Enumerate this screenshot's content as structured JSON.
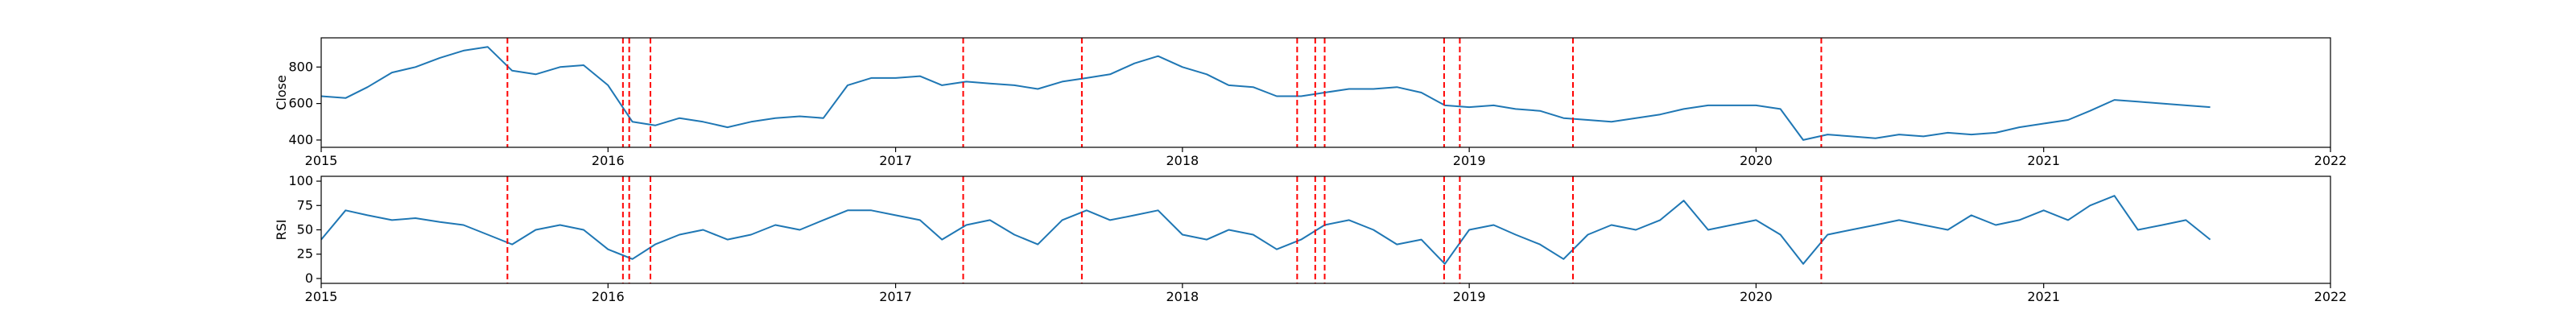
{
  "colors": {
    "series": "#1f77b4",
    "event_line": "#ff0000",
    "axes": "#000000",
    "background": "#ffffff"
  },
  "x_axis": {
    "tick_labels": [
      "2015",
      "2016",
      "2017",
      "2018",
      "2019",
      "2020",
      "2021",
      "2022"
    ],
    "range": [
      "2015-01-01",
      "2022-01-01"
    ]
  },
  "chart_data": [
    {
      "type": "line",
      "ylabel": "Close",
      "ylim": [
        360,
        960
      ],
      "yticks": [
        400,
        600,
        800
      ],
      "grid": false,
      "series": [
        {
          "x": [
            "2015-01-01",
            "2015-02-01",
            "2015-03-01",
            "2015-04-01",
            "2015-05-01",
            "2015-06-01",
            "2015-07-01",
            "2015-08-01",
            "2015-09-01",
            "2015-10-01",
            "2015-11-01",
            "2015-12-01",
            "2016-01-01",
            "2016-02-01",
            "2016-03-01",
            "2016-04-01",
            "2016-05-01",
            "2016-06-01",
            "2016-07-01",
            "2016-08-01",
            "2016-09-01",
            "2016-10-01",
            "2016-11-01",
            "2016-12-01",
            "2017-01-01",
            "2017-02-01",
            "2017-03-01",
            "2017-04-01",
            "2017-05-01",
            "2017-06-01",
            "2017-07-01",
            "2017-08-01",
            "2017-09-01",
            "2017-10-01",
            "2017-11-01",
            "2017-12-01",
            "2018-01-01",
            "2018-02-01",
            "2018-03-01",
            "2018-04-01",
            "2018-05-01",
            "2018-06-01",
            "2018-07-01",
            "2018-08-01",
            "2018-09-01",
            "2018-10-01",
            "2018-11-01",
            "2018-12-01",
            "2019-01-01",
            "2019-02-01",
            "2019-03-01",
            "2019-04-01",
            "2019-05-01",
            "2019-06-01",
            "2019-07-01",
            "2019-08-01",
            "2019-09-01",
            "2019-10-01",
            "2019-11-01",
            "2019-12-01",
            "2020-01-01",
            "2020-02-01",
            "2020-03-01",
            "2020-04-01",
            "2020-05-01",
            "2020-06-01",
            "2020-07-01",
            "2020-08-01",
            "2020-09-01",
            "2020-10-01",
            "2020-11-01",
            "2020-12-01",
            "2021-01-01",
            "2021-02-01",
            "2021-03-01",
            "2021-04-01",
            "2021-05-01",
            "2021-06-01",
            "2021-07-01",
            "2021-08-01"
          ],
          "y": [
            640,
            630,
            690,
            770,
            800,
            850,
            890,
            910,
            780,
            760,
            800,
            810,
            700,
            500,
            480,
            520,
            500,
            470,
            500,
            520,
            530,
            520,
            700,
            740,
            740,
            750,
            700,
            720,
            710,
            700,
            680,
            720,
            740,
            760,
            820,
            860,
            800,
            760,
            700,
            690,
            640,
            640,
            660,
            680,
            680,
            690,
            660,
            590,
            580,
            590,
            570,
            560,
            520,
            510,
            500,
            520,
            540,
            570,
            590,
            590,
            590,
            570,
            400,
            430,
            420,
            410,
            430,
            420,
            440,
            430,
            440,
            470,
            490,
            510,
            560,
            620,
            610,
            600,
            590,
            580
          ]
        }
      ],
      "event_dates": [
        "2015-08-26",
        "2016-01-20",
        "2016-01-28",
        "2016-02-24",
        "2017-03-28",
        "2017-08-26",
        "2018-05-27",
        "2018-06-19",
        "2018-07-01",
        "2018-11-30",
        "2018-12-20",
        "2019-05-13",
        "2020-03-24"
      ]
    },
    {
      "type": "line",
      "ylabel": "RSI",
      "ylim": [
        -5,
        105
      ],
      "yticks": [
        0,
        25,
        50,
        75,
        100
      ],
      "grid": false,
      "series": [
        {
          "x": [
            "2015-01-01",
            "2015-02-01",
            "2015-03-01",
            "2015-04-01",
            "2015-05-01",
            "2015-06-01",
            "2015-07-01",
            "2015-08-01",
            "2015-09-01",
            "2015-10-01",
            "2015-11-01",
            "2015-12-01",
            "2016-01-01",
            "2016-02-01",
            "2016-03-01",
            "2016-04-01",
            "2016-05-01",
            "2016-06-01",
            "2016-07-01",
            "2016-08-01",
            "2016-09-01",
            "2016-10-01",
            "2016-11-01",
            "2016-12-01",
            "2017-01-01",
            "2017-02-01",
            "2017-03-01",
            "2017-04-01",
            "2017-05-01",
            "2017-06-01",
            "2017-07-01",
            "2017-08-01",
            "2017-09-01",
            "2017-10-01",
            "2017-11-01",
            "2017-12-01",
            "2018-01-01",
            "2018-02-01",
            "2018-03-01",
            "2018-04-01",
            "2018-05-01",
            "2018-06-01",
            "2018-07-01",
            "2018-08-01",
            "2018-09-01",
            "2018-10-01",
            "2018-11-01",
            "2018-12-01",
            "2019-01-01",
            "2019-02-01",
            "2019-03-01",
            "2019-04-01",
            "2019-05-01",
            "2019-06-01",
            "2019-07-01",
            "2019-08-01",
            "2019-09-01",
            "2019-10-01",
            "2019-11-01",
            "2019-12-01",
            "2020-01-01",
            "2020-02-01",
            "2020-03-01",
            "2020-04-01",
            "2020-05-01",
            "2020-06-01",
            "2020-07-01",
            "2020-08-01",
            "2020-09-01",
            "2020-10-01",
            "2020-11-01",
            "2020-12-01",
            "2021-01-01",
            "2021-02-01",
            "2021-03-01",
            "2021-04-01",
            "2021-05-01",
            "2021-06-01",
            "2021-07-01",
            "2021-08-01"
          ],
          "y": [
            40,
            70,
            65,
            60,
            62,
            58,
            55,
            45,
            35,
            50,
            55,
            50,
            30,
            20,
            35,
            45,
            50,
            40,
            45,
            55,
            50,
            60,
            70,
            70,
            65,
            60,
            40,
            55,
            60,
            45,
            35,
            60,
            70,
            60,
            65,
            70,
            45,
            40,
            50,
            45,
            30,
            40,
            55,
            60,
            50,
            35,
            40,
            15,
            50,
            55,
            45,
            35,
            20,
            45,
            55,
            50,
            60,
            80,
            50,
            55,
            60,
            45,
            15,
            45,
            50,
            55,
            60,
            55,
            50,
            65,
            55,
            60,
            70,
            60,
            75,
            85,
            50,
            55,
            60,
            40
          ]
        }
      ],
      "event_dates": [
        "2015-08-26",
        "2016-01-20",
        "2016-01-28",
        "2016-02-24",
        "2017-03-28",
        "2017-08-26",
        "2018-05-27",
        "2018-06-19",
        "2018-07-01",
        "2018-11-30",
        "2018-12-20",
        "2019-05-13",
        "2020-03-24"
      ]
    }
  ]
}
